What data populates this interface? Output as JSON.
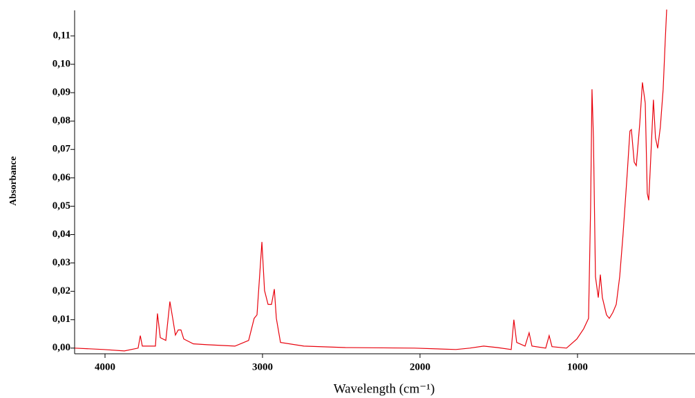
{
  "chart_data": {
    "type": "line",
    "x_label": "Wavelength (cm⁻¹)",
    "y_label": "Absorbance",
    "color": "#e8000b",
    "xlim": [
      4193,
      254
    ],
    "xticks": [
      4000,
      3000,
      2000,
      1000
    ],
    "ylim": [
      -0.002,
      0.119
    ],
    "yticks": [
      {
        "value": 0,
        "label": "0,00"
      },
      {
        "value": 0.01,
        "label": "0,01"
      },
      {
        "value": 0.02,
        "label": "0,02"
      },
      {
        "value": 0.03,
        "label": "0,03"
      },
      {
        "value": 0.04,
        "label": "0,04"
      },
      {
        "value": 0.05,
        "label": "0,05"
      },
      {
        "value": 0.06,
        "label": "0,06"
      },
      {
        "value": 0.07,
        "label": "0,07"
      },
      {
        "value": 0.08,
        "label": "0,08"
      },
      {
        "value": 0.09,
        "label": "0,09"
      },
      {
        "value": 0.1,
        "label": "0,10"
      },
      {
        "value": 0.11,
        "label": "0,11"
      }
    ],
    "x": [
      4193,
      4009,
      3877,
      3790,
      3776,
      3763,
      3680,
      3667,
      3649,
      3614,
      3588,
      3570,
      3553,
      3535,
      3518,
      3500,
      3439,
      3351,
      3175,
      3088,
      3053,
      3035,
      3004,
      2987,
      2965,
      2943,
      2925,
      2912,
      2886,
      2737,
      2474,
      2035,
      1772,
      1684,
      1596,
      1509,
      1421,
      1404,
      1386,
      1333,
      1307,
      1289,
      1202,
      1180,
      1162,
      1070,
      1004,
      961,
      930,
      917,
      908,
      899,
      886,
      868,
      855,
      842,
      816,
      798,
      776,
      754,
      732,
      711,
      684,
      667,
      658,
      640,
      627,
      605,
      588,
      570,
      557,
      548,
      539,
      518,
      505,
      491,
      474,
      456,
      443,
      434
    ],
    "values": [
      0,
      -0.0005,
      -0.001,
      0,
      0.0044,
      0.0007,
      0.0007,
      0.0122,
      0.0037,
      0.0027,
      0.0164,
      0.0105,
      0.0046,
      0.0064,
      0.0064,
      0.0032,
      0.0015,
      0.0012,
      0.0007,
      0.0027,
      0.0105,
      0.0117,
      0.0374,
      0.0203,
      0.0154,
      0.0154,
      0.0208,
      0.0105,
      0.002,
      0.0007,
      0.0002,
      0,
      -0.0005,
      0,
      0.0007,
      0.0002,
      -0.0005,
      0.01,
      0.002,
      0.0007,
      0.0054,
      0.0007,
      0,
      0.0044,
      0.0005,
      0,
      0.0032,
      0.0068,
      0.0105,
      0.0496,
      0.0912,
      0.0741,
      0.0252,
      0.0178,
      0.0259,
      0.0178,
      0.0117,
      0.0105,
      0.0125,
      0.0154,
      0.0252,
      0.0399,
      0.0619,
      0.0765,
      0.077,
      0.0655,
      0.0643,
      0.079,
      0.0936,
      0.0863,
      0.0545,
      0.0521,
      0.0619,
      0.0875,
      0.0741,
      0.0704,
      0.0778,
      0.0912,
      0.1083,
      0.1193
    ]
  }
}
